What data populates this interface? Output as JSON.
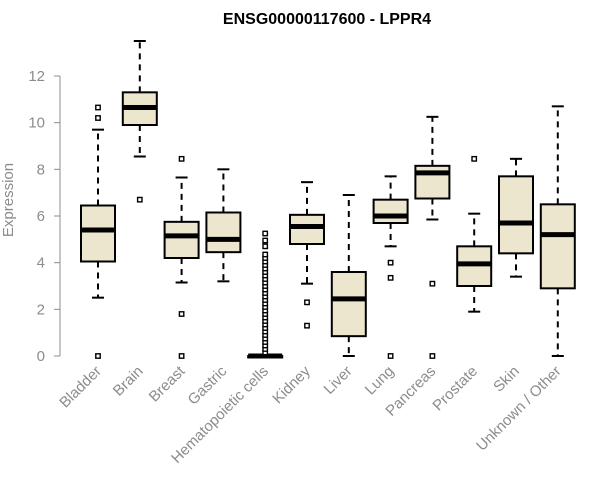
{
  "chart_data": {
    "type": "box",
    "title": "ENSG00000117600 - LPPR4",
    "xlabel": "",
    "ylabel": "Expression",
    "ylim": [
      -0.3,
      13.9
    ],
    "yticks": [
      0,
      2,
      4,
      6,
      8,
      10,
      12
    ],
    "grid": false,
    "legend": "none",
    "colors": {
      "box_fill": "#ede6cf",
      "stroke": "#000000",
      "axis_text": "#8c8c8c"
    },
    "categories": [
      "Bladder",
      "Brain",
      "Breast",
      "Gastric",
      "Hematopoietic cells",
      "Kidney",
      "Liver",
      "Lung",
      "Pancreas",
      "Prostate",
      "Skin",
      "Unknown / Other"
    ],
    "boxes": [
      {
        "category": "Bladder",
        "whisker_low": 2.5,
        "q1": 4.05,
        "median": 5.4,
        "q3": 6.45,
        "whisker_high": 9.7,
        "outliers": [
          0,
          10.2,
          10.65
        ]
      },
      {
        "category": "Brain",
        "whisker_low": 8.55,
        "q1": 9.9,
        "median": 10.65,
        "q3": 11.3,
        "whisker_high": 13.5,
        "outliers": [
          6.7
        ]
      },
      {
        "category": "Breast",
        "whisker_low": 3.15,
        "q1": 4.2,
        "median": 5.15,
        "q3": 5.75,
        "whisker_high": 7.65,
        "outliers": [
          0,
          1.8,
          8.45
        ]
      },
      {
        "category": "Gastric",
        "whisker_low": 3.2,
        "q1": 4.45,
        "median": 5.0,
        "q3": 6.15,
        "whisker_high": 8.0,
        "outliers": []
      },
      {
        "category": "Hematopoietic cells",
        "whisker_low": 0,
        "q1": 0,
        "median": 0,
        "q3": 0,
        "whisker_high": 0,
        "outliers": [
          0.15,
          0.3,
          0.45,
          0.6,
          0.75,
          0.9,
          1.05,
          1.2,
          1.35,
          1.5,
          1.65,
          1.8,
          1.95,
          2.1,
          2.25,
          2.4,
          2.55,
          2.7,
          2.85,
          3.0,
          3.15,
          3.3,
          3.45,
          3.6,
          3.75,
          3.9,
          4.05,
          4.2,
          4.35,
          4.7,
          4.95,
          5.25
        ]
      },
      {
        "category": "Kidney",
        "whisker_low": 3.1,
        "q1": 4.8,
        "median": 5.55,
        "q3": 6.05,
        "whisker_high": 7.45,
        "outliers": [
          1.3,
          2.3
        ]
      },
      {
        "category": "Liver",
        "whisker_low": 0,
        "q1": 0.85,
        "median": 2.45,
        "q3": 3.6,
        "whisker_high": 6.9,
        "outliers": []
      },
      {
        "category": "Lung",
        "whisker_low": 4.7,
        "q1": 5.7,
        "median": 6.0,
        "q3": 6.7,
        "whisker_high": 7.7,
        "outliers": [
          0,
          3.35,
          4.0
        ]
      },
      {
        "category": "Pancreas",
        "whisker_low": 5.85,
        "q1": 6.75,
        "median": 7.85,
        "q3": 8.15,
        "whisker_high": 10.25,
        "outliers": [
          0,
          3.1
        ]
      },
      {
        "category": "Prostate",
        "whisker_low": 1.9,
        "q1": 3.0,
        "median": 3.95,
        "q3": 4.7,
        "whisker_high": 6.1,
        "outliers": [
          8.45
        ]
      },
      {
        "category": "Skin",
        "whisker_low": 3.4,
        "q1": 4.4,
        "median": 5.7,
        "q3": 7.7,
        "whisker_high": 8.45,
        "outliers": []
      },
      {
        "category": "Unknown / Other",
        "whisker_low": 0,
        "q1": 2.9,
        "median": 5.2,
        "q3": 6.5,
        "whisker_high": 10.7,
        "outliers": []
      }
    ]
  }
}
